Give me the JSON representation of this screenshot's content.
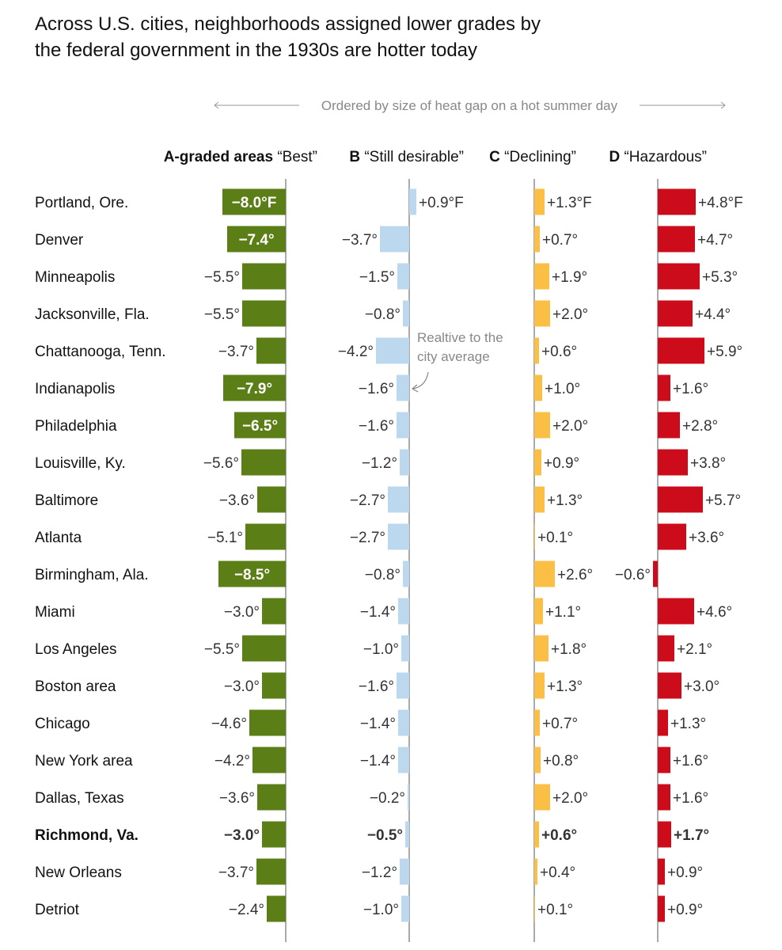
{
  "title_lines": [
    "Across U.S. cities, neighborhoods assigned lower grades by",
    "the federal government in the 1930s are hotter today"
  ],
  "chart_data": {
    "type": "bar",
    "ordering_note": "Ordered by size of heat gap on a hot summer day",
    "annotation_lines": [
      "Realtive to the",
      "city average"
    ],
    "unit_suffix": "°",
    "first_row_suffix": "°F",
    "highlight_city": "Richmond, Va.",
    "categories": [
      "Portland, Ore.",
      "Denver",
      "Minneapolis",
      "Jacksonville, Fla.",
      "Chattanooga, Tenn.",
      "Indianapolis",
      "Philadelphia",
      "Louisville, Ky.",
      "Baltimore",
      "Atlanta",
      "Birmingham, Ala.",
      "Miami",
      "Los Angeles",
      "Boston area",
      "Chicago",
      "New York area",
      "Dallas, Texas",
      "Richmond, Va.",
      "New Orleans",
      "Detriot"
    ],
    "series": [
      {
        "bold_label": "A-graded areas",
        "name": "“Best”",
        "color": "#5b7e16",
        "values": [
          -8.0,
          -7.4,
          -5.5,
          -5.5,
          -3.7,
          -7.9,
          -6.5,
          -5.6,
          -3.6,
          -5.1,
          -8.5,
          -3.0,
          -5.5,
          -3.0,
          -4.6,
          -4.2,
          -3.6,
          -3.0,
          -3.7,
          -2.4
        ]
      },
      {
        "bold_label": "B",
        "name": "“Still desirable”",
        "color": "#bcd8ee",
        "values": [
          0.9,
          -3.7,
          -1.5,
          -0.8,
          -4.2,
          -1.6,
          -1.6,
          -1.2,
          -2.7,
          -2.7,
          -0.8,
          -1.4,
          -1.0,
          -1.6,
          -1.4,
          -1.4,
          -0.2,
          -0.5,
          -1.2,
          -1.0
        ]
      },
      {
        "bold_label": "C",
        "name": "“Declining”",
        "color": "#fbbf45",
        "values": [
          1.3,
          0.7,
          1.9,
          2.0,
          0.6,
          1.0,
          2.0,
          0.9,
          1.3,
          0.1,
          2.6,
          1.1,
          1.8,
          1.3,
          0.7,
          0.8,
          2.0,
          0.6,
          0.4,
          0.1
        ]
      },
      {
        "bold_label": "D",
        "name": "“Hazardous”",
        "color": "#cc0c1b",
        "values": [
          4.8,
          4.7,
          5.3,
          4.4,
          5.9,
          1.6,
          2.8,
          3.8,
          5.7,
          3.6,
          -0.6,
          4.6,
          2.1,
          3.0,
          1.3,
          1.6,
          1.6,
          1.7,
          0.9,
          0.9
        ]
      }
    ]
  }
}
